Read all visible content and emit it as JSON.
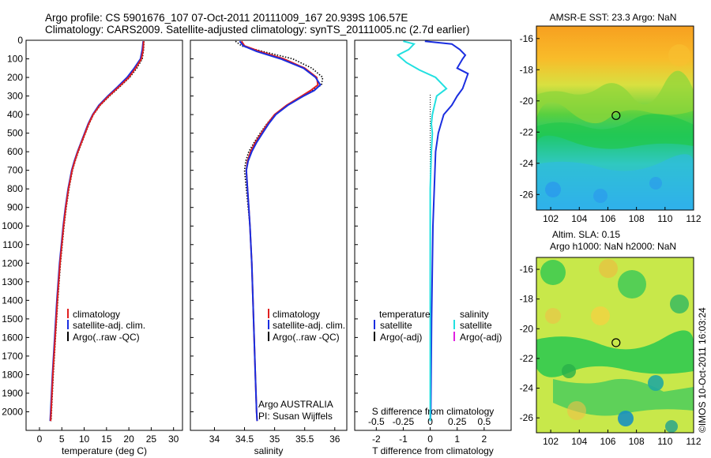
{
  "header": {
    "line1": "Argo profile: CS 5901676_107 07-Oct-2011 20111009_167 20.939S 106.57E",
    "line2": "Climatology: CARS2009. Satellite-adjusted climatology: synTS_20111005.nc (2.7d earlier)"
  },
  "colors": {
    "climatology": "#e02020",
    "satellite": "#1a2ee0",
    "argo": "#000000",
    "sal_satellite": "#22e0e0",
    "sal_argo": "#e020e0"
  },
  "chart_data": [
    {
      "type": "line",
      "name": "temperature-profile",
      "xlabel": "temperature (deg C)",
      "ylabel": "",
      "xlim": [
        -3,
        32
      ],
      "ylim": [
        2100,
        0
      ],
      "xticks": [
        "0",
        "5",
        "10",
        "15",
        "20",
        "25",
        "30"
      ],
      "xtick_values": [
        0,
        5,
        10,
        15,
        20,
        25,
        30
      ],
      "yticks": [
        "0",
        "100",
        "200",
        "300",
        "400",
        "500",
        "600",
        "700",
        "800",
        "900",
        "1000",
        "1100",
        "1200",
        "1300",
        "1400",
        "1500",
        "1600",
        "1700",
        "1800",
        "1900",
        "2000"
      ],
      "ytick_values": [
        0,
        100,
        200,
        300,
        400,
        500,
        600,
        700,
        800,
        900,
        1000,
        1100,
        1200,
        1300,
        1400,
        1500,
        1600,
        1700,
        1800,
        1900,
        2000
      ],
      "legend": [
        "climatology",
        "satellite-adj. clim.",
        "Argo(..raw -QC)"
      ],
      "series": [
        {
          "name": "climatology",
          "depth": [
            5,
            50,
            100,
            150,
            200,
            250,
            300,
            350,
            400,
            450,
            500,
            550,
            600,
            650,
            700,
            800,
            900,
            1000,
            1200,
            1400,
            1600,
            1800,
            2000,
            2050
          ],
          "values": [
            23.3,
            23.2,
            22.8,
            21.5,
            20.0,
            17.8,
            15.5,
            13.5,
            12.0,
            11.0,
            10.2,
            9.4,
            8.6,
            7.9,
            7.3,
            6.5,
            5.9,
            5.4,
            4.6,
            4.0,
            3.5,
            3.0,
            2.6,
            2.5
          ]
        },
        {
          "name": "satellite",
          "depth": [
            5,
            50,
            100,
            150,
            200,
            250,
            300,
            350,
            400,
            450,
            500,
            550,
            600,
            650,
            700,
            800,
            900,
            1000,
            1200,
            1400,
            1600,
            1800,
            2000,
            2050
          ],
          "values": [
            23.2,
            23.0,
            22.6,
            21.2,
            19.6,
            17.5,
            15.3,
            13.3,
            11.9,
            10.9,
            10.1,
            9.3,
            8.5,
            7.8,
            7.2,
            6.4,
            5.8,
            5.3,
            4.5,
            3.9,
            3.4,
            2.9,
            2.5,
            2.4
          ]
        },
        {
          "name": "argo",
          "depth": [
            5,
            50,
            100,
            150,
            200,
            250,
            300,
            350,
            400,
            450,
            500,
            550,
            600,
            650,
            700,
            800,
            900,
            1000,
            1200,
            1400,
            1600,
            1800,
            2000,
            2050
          ],
          "values": [
            23.4,
            23.3,
            23.0,
            21.8,
            20.2,
            18.0,
            15.7,
            13.6,
            12.1,
            11.1,
            10.3,
            9.5,
            8.7,
            8.0,
            7.4,
            6.6,
            6.0,
            5.5,
            4.7,
            4.1,
            3.6,
            3.1,
            2.7,
            2.6
          ]
        }
      ]
    },
    {
      "type": "line",
      "name": "salinity-profile",
      "xlabel": "salinity",
      "xlim": [
        33.6,
        36.2
      ],
      "ylim": [
        2100,
        0
      ],
      "xticks": [
        "34",
        "34.5",
        "35",
        "35.5",
        "36"
      ],
      "xtick_values": [
        34,
        34.5,
        35,
        35.5,
        36
      ],
      "legend": [
        "climatology",
        "satellite-adj. clim.",
        "Argo(..raw -QC)"
      ],
      "annotation_line1": "Argo AUSTRALIA",
      "annotation_line2": "PI: Susan Wijffels",
      "series": [
        {
          "name": "climatology",
          "depth": [
            5,
            30,
            60,
            100,
            150,
            200,
            240,
            270,
            300,
            350,
            400,
            450,
            500,
            550,
            600,
            650,
            700,
            800,
            900,
            1000,
            1200,
            1400,
            1600,
            1800,
            2000,
            2050
          ],
          "values": [
            34.45,
            34.5,
            34.75,
            35.15,
            35.5,
            35.7,
            35.72,
            35.6,
            35.45,
            35.2,
            35.0,
            34.88,
            34.78,
            34.68,
            34.6,
            34.55,
            34.53,
            34.55,
            34.57,
            34.59,
            34.62,
            34.64,
            34.66,
            34.68,
            34.7,
            34.71
          ]
        },
        {
          "name": "satellite",
          "depth": [
            5,
            30,
            60,
            100,
            150,
            200,
            240,
            270,
            300,
            350,
            400,
            450,
            500,
            550,
            600,
            650,
            700,
            800,
            900,
            1000,
            1200,
            1400,
            1600,
            1800,
            2000,
            2050
          ],
          "values": [
            34.42,
            34.48,
            34.7,
            35.1,
            35.48,
            35.68,
            35.76,
            35.66,
            35.48,
            35.22,
            35.02,
            34.9,
            34.8,
            34.7,
            34.62,
            34.56,
            34.53,
            34.55,
            34.57,
            34.59,
            34.62,
            34.64,
            34.66,
            34.68,
            34.7,
            34.71
          ]
        },
        {
          "name": "argo",
          "depth": [
            5,
            30,
            60,
            100,
            150,
            200,
            240,
            270,
            300,
            350,
            400,
            450,
            500,
            550,
            600,
            650,
            700,
            800,
            900,
            1000,
            1200,
            1400,
            1600,
            1800,
            2000,
            2050
          ],
          "values": [
            34.35,
            34.45,
            34.8,
            35.3,
            35.62,
            35.8,
            35.78,
            35.62,
            35.45,
            35.2,
            35.0,
            34.87,
            34.76,
            34.66,
            34.57,
            34.52,
            34.5,
            34.53,
            34.56,
            34.59,
            34.62,
            34.64,
            34.66,
            34.68,
            34.7,
            34.71
          ]
        }
      ]
    },
    {
      "type": "line",
      "name": "difference-profile",
      "xlabel": "T difference from climatology",
      "xlabel_top": "S difference from climatology",
      "xlim": [
        -2.8,
        3.0
      ],
      "ylim": [
        2100,
        0
      ],
      "xticks": [
        "-2",
        "-1",
        "0",
        "1",
        "2"
      ],
      "xtick_values": [
        -2,
        -1,
        0,
        1,
        2
      ],
      "xticks_top": [
        "-0.5",
        "-0.25",
        "0",
        "0.25",
        "0.5"
      ],
      "xtick_top_values": [
        -0.5,
        -0.25,
        0,
        0.25,
        0.5
      ],
      "legend_temperature": [
        "temperature",
        "satellite",
        "Argo(-adj)"
      ],
      "legend_salinity": [
        "salinity",
        "satellite",
        "Argo(-adj)"
      ],
      "series": [
        {
          "name": "temperature satellite",
          "depth": [
            5,
            20,
            50,
            80,
            100,
            150,
            180,
            220,
            260,
            300,
            350,
            400,
            450,
            500,
            600,
            800,
            1000,
            1500,
            2000,
            2050
          ],
          "values": [
            -0.2,
            0.8,
            1.1,
            1.3,
            1.2,
            1.0,
            1.4,
            1.3,
            1.2,
            1.0,
            0.8,
            0.5,
            0.4,
            0.3,
            0.2,
            0.15,
            0.1,
            0.05,
            0.02,
            0.0
          ]
        },
        {
          "name": "salinity satellite",
          "depth": [
            5,
            20,
            50,
            80,
            120,
            160,
            200,
            260,
            300,
            350,
            400,
            450,
            500,
            600,
            800,
            1000,
            1500,
            2000,
            2050
          ],
          "values": [
            -0.25,
            -0.15,
            -0.2,
            -0.3,
            -0.22,
            -0.1,
            0.05,
            0.15,
            0.06,
            0.04,
            0.02,
            0.01,
            0.02,
            0.01,
            0.0,
            0.0,
            0.0,
            0.0,
            0.0
          ]
        }
      ]
    },
    {
      "type": "heatmap",
      "name": "sst-map",
      "title": "AMSR-E SST: 23.3  Argo: NaN",
      "xlim": [
        101,
        112
      ],
      "ylim": [
        -27,
        -15.2
      ],
      "xticks": [
        "102",
        "104",
        "106",
        "108",
        "110",
        "112"
      ],
      "xtick_values": [
        102,
        104,
        106,
        108,
        110,
        112
      ],
      "yticks": [
        "-16",
        "-18",
        "-20",
        "-22",
        "-24",
        "-26"
      ],
      "ytick_values": [
        -16,
        -18,
        -20,
        -22,
        -24,
        -26
      ],
      "marker": {
        "lon": 106.57,
        "lat": -20.939
      }
    },
    {
      "type": "heatmap",
      "name": "sla-map",
      "title_line1": "Altim. SLA: 0.15",
      "title_line2": "Argo h1000: NaN h2000: NaN",
      "xlim": [
        101,
        112
      ],
      "ylim": [
        -27,
        -15.2
      ],
      "xticks": [
        "102",
        "104",
        "106",
        "108",
        "110",
        "112"
      ],
      "xtick_values": [
        102,
        104,
        106,
        108,
        110,
        112
      ],
      "yticks": [
        "-16",
        "-18",
        "-20",
        "-22",
        "-24",
        "-26"
      ],
      "ytick_values": [
        -16,
        -18,
        -20,
        -22,
        -24,
        -26
      ],
      "marker": {
        "lon": 106.57,
        "lat": -20.939
      }
    }
  ],
  "watermark": "©IMOS 10-Oct-2011 16:03:24"
}
